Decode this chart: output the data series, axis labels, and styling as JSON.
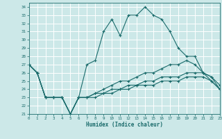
{
  "title": "",
  "xlabel": "Humidex (Indice chaleur)",
  "xlim": [
    0,
    23
  ],
  "ylim": [
    21,
    34.5
  ],
  "yticks": [
    21,
    22,
    23,
    24,
    25,
    26,
    27,
    28,
    29,
    30,
    31,
    32,
    33,
    34
  ],
  "xticks": [
    0,
    1,
    2,
    3,
    4,
    5,
    6,
    7,
    8,
    9,
    10,
    11,
    12,
    13,
    14,
    15,
    16,
    17,
    18,
    19,
    20,
    21,
    22,
    23
  ],
  "bg_color": "#cce8e8",
  "line_color": "#1a6b6b",
  "grid_color": "#ffffff",
  "lines": [
    [
      27,
      26,
      23,
      23,
      23,
      21,
      23,
      27,
      27.5,
      31,
      32.5,
      30.5,
      33,
      33,
      34,
      33,
      32.5,
      31,
      29,
      28,
      28,
      26,
      25,
      24
    ],
    [
      27,
      26,
      23,
      23,
      23,
      21,
      23,
      23,
      23.5,
      24,
      24.5,
      25,
      25,
      25.5,
      26,
      26,
      26.5,
      27,
      27,
      27.5,
      27,
      26,
      25.5,
      24.5
    ],
    [
      27,
      26,
      23,
      23,
      23,
      21,
      23,
      23,
      23.5,
      23.5,
      24,
      24,
      24.5,
      24.5,
      25,
      25,
      25.5,
      25.5,
      25.5,
      26,
      26,
      26,
      25.5,
      24
    ],
    [
      27,
      26,
      23,
      23,
      23,
      21,
      23,
      23,
      23,
      23.5,
      23.5,
      24,
      24,
      24.5,
      24.5,
      24.5,
      25,
      25,
      25,
      25.5,
      25.5,
      25.5,
      25,
      24
    ]
  ]
}
